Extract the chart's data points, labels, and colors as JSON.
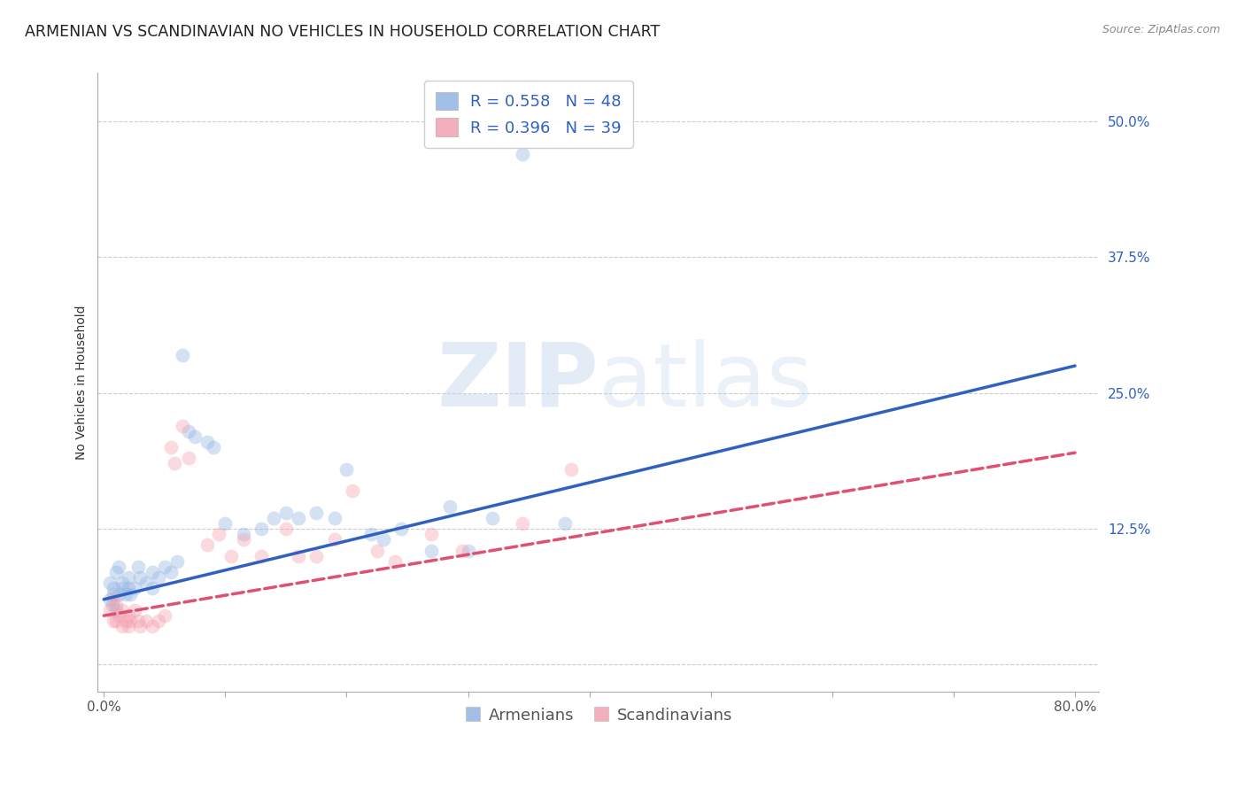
{
  "title": "ARMENIAN VS SCANDINAVIAN NO VEHICLES IN HOUSEHOLD CORRELATION CHART",
  "source": "Source: ZipAtlas.com",
  "ylabel": "No Vehicles in Household",
  "ytick_labels": [
    "",
    "12.5%",
    "25.0%",
    "37.5%",
    "50.0%"
  ],
  "ytick_values": [
    0.0,
    0.125,
    0.25,
    0.375,
    0.5
  ],
  "xlim": [
    -0.005,
    0.82
  ],
  "ylim": [
    -0.025,
    0.545
  ],
  "watermark_zip": "ZIP",
  "watermark_atlas": "atlas",
  "legend_r_armenian": "R = 0.558",
  "legend_n_armenian": "N = 48",
  "legend_r_scandinavian": "R = 0.396",
  "legend_n_scandinavian": "N = 39",
  "armenian_color": "#92b4e3",
  "scandinavian_color": "#f4a0b0",
  "line_armenian_color": "#3060c0",
  "line_scandinavian_color": "#e05070",
  "armenian_scatter": [
    [
      0.005,
      0.075
    ],
    [
      0.008,
      0.065
    ],
    [
      0.01,
      0.085
    ],
    [
      0.012,
      0.09
    ],
    [
      0.005,
      0.06
    ],
    [
      0.007,
      0.055
    ],
    [
      0.008,
      0.07
    ],
    [
      0.01,
      0.05
    ],
    [
      0.012,
      0.065
    ],
    [
      0.015,
      0.075
    ],
    [
      0.015,
      0.07
    ],
    [
      0.018,
      0.065
    ],
    [
      0.02,
      0.07
    ],
    [
      0.02,
      0.08
    ],
    [
      0.022,
      0.065
    ],
    [
      0.025,
      0.07
    ],
    [
      0.028,
      0.09
    ],
    [
      0.03,
      0.08
    ],
    [
      0.035,
      0.075
    ],
    [
      0.04,
      0.085
    ],
    [
      0.04,
      0.07
    ],
    [
      0.045,
      0.08
    ],
    [
      0.05,
      0.09
    ],
    [
      0.055,
      0.085
    ],
    [
      0.06,
      0.095
    ],
    [
      0.065,
      0.285
    ],
    [
      0.07,
      0.215
    ],
    [
      0.075,
      0.21
    ],
    [
      0.085,
      0.205
    ],
    [
      0.09,
      0.2
    ],
    [
      0.1,
      0.13
    ],
    [
      0.115,
      0.12
    ],
    [
      0.13,
      0.125
    ],
    [
      0.14,
      0.135
    ],
    [
      0.15,
      0.14
    ],
    [
      0.16,
      0.135
    ],
    [
      0.175,
      0.14
    ],
    [
      0.19,
      0.135
    ],
    [
      0.2,
      0.18
    ],
    [
      0.22,
      0.12
    ],
    [
      0.23,
      0.115
    ],
    [
      0.245,
      0.125
    ],
    [
      0.27,
      0.105
    ],
    [
      0.285,
      0.145
    ],
    [
      0.3,
      0.105
    ],
    [
      0.32,
      0.135
    ],
    [
      0.345,
      0.47
    ],
    [
      0.38,
      0.13
    ]
  ],
  "scandinavian_scatter": [
    [
      0.005,
      0.05
    ],
    [
      0.008,
      0.06
    ],
    [
      0.008,
      0.04
    ],
    [
      0.01,
      0.055
    ],
    [
      0.01,
      0.04
    ],
    [
      0.012,
      0.045
    ],
    [
      0.015,
      0.05
    ],
    [
      0.015,
      0.035
    ],
    [
      0.018,
      0.04
    ],
    [
      0.02,
      0.045
    ],
    [
      0.02,
      0.035
    ],
    [
      0.022,
      0.04
    ],
    [
      0.025,
      0.05
    ],
    [
      0.028,
      0.04
    ],
    [
      0.03,
      0.035
    ],
    [
      0.035,
      0.04
    ],
    [
      0.04,
      0.035
    ],
    [
      0.045,
      0.04
    ],
    [
      0.05,
      0.045
    ],
    [
      0.055,
      0.2
    ],
    [
      0.058,
      0.185
    ],
    [
      0.065,
      0.22
    ],
    [
      0.07,
      0.19
    ],
    [
      0.085,
      0.11
    ],
    [
      0.095,
      0.12
    ],
    [
      0.105,
      0.1
    ],
    [
      0.115,
      0.115
    ],
    [
      0.13,
      0.1
    ],
    [
      0.15,
      0.125
    ],
    [
      0.16,
      0.1
    ],
    [
      0.175,
      0.1
    ],
    [
      0.19,
      0.115
    ],
    [
      0.205,
      0.16
    ],
    [
      0.225,
      0.105
    ],
    [
      0.24,
      0.095
    ],
    [
      0.27,
      0.12
    ],
    [
      0.295,
      0.105
    ],
    [
      0.345,
      0.13
    ],
    [
      0.385,
      0.18
    ]
  ],
  "armenian_line": [
    [
      0.0,
      0.06
    ],
    [
      0.8,
      0.275
    ]
  ],
  "scandinavian_line": [
    [
      0.0,
      0.045
    ],
    [
      0.8,
      0.195
    ]
  ],
  "background_color": "#ffffff",
  "grid_color": "#cccccc",
  "title_fontsize": 12.5,
  "axis_label_fontsize": 10,
  "tick_fontsize": 11,
  "legend_fontsize": 13,
  "scatter_size": 130,
  "scatter_alpha": 0.4,
  "line_width": 2.5
}
